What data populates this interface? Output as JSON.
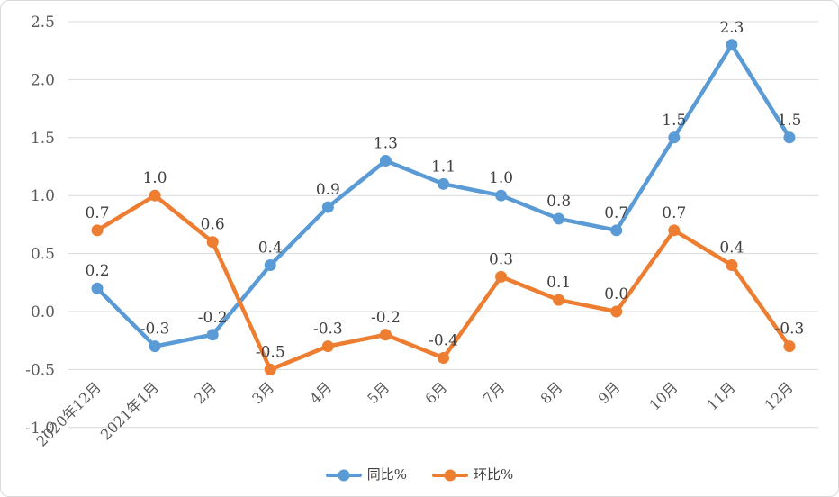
{
  "chart_data": {
    "type": "line",
    "categories": [
      "2020年12月",
      "2021年1月",
      "2月",
      "3月",
      "4月",
      "5月",
      "6月",
      "7月",
      "8月",
      "9月",
      "10月",
      "11月",
      "12月"
    ],
    "series": [
      {
        "name": "同比%",
        "color": "#5B9BD5",
        "values": [
          0.2,
          -0.3,
          -0.2,
          0.4,
          0.9,
          1.3,
          1.1,
          1.0,
          0.8,
          0.7,
          1.5,
          2.3,
          1.5
        ],
        "labels": [
          "0.2",
          "-0.3",
          "-0.2",
          "0.4",
          "0.9",
          "1.3",
          "1.1",
          "1.0",
          "0.8",
          "0.7",
          "1.5",
          "2.3",
          "1.5"
        ]
      },
      {
        "name": "环比%",
        "color": "#ED7D31",
        "values": [
          0.7,
          1.0,
          0.6,
          -0.5,
          -0.3,
          -0.2,
          -0.4,
          0.3,
          0.1,
          0.0,
          0.7,
          0.4,
          -0.3
        ],
        "labels": [
          "0.7",
          "1.0",
          "0.6",
          "-0.5",
          "-0.3",
          "-0.2",
          "-0.4",
          "0.3",
          "0.1",
          "0.0",
          "0.7",
          "0.4",
          "-0.3"
        ]
      }
    ],
    "yticks": [
      "2.5",
      "2.0",
      "1.5",
      "1.0",
      "0.5",
      "0.0",
      "-0.5",
      "-1.0"
    ],
    "ylim": [
      -1.0,
      2.5
    ],
    "ytick_step": 0.5,
    "grid": true,
    "legend_position": "bottom",
    "data_labels": true,
    "colors": {
      "gridline": "#D9D9D9",
      "axis_label": "#595959",
      "data_label": "#404040",
      "border": "#D9D9D9",
      "background": "#FFFFFF"
    }
  }
}
